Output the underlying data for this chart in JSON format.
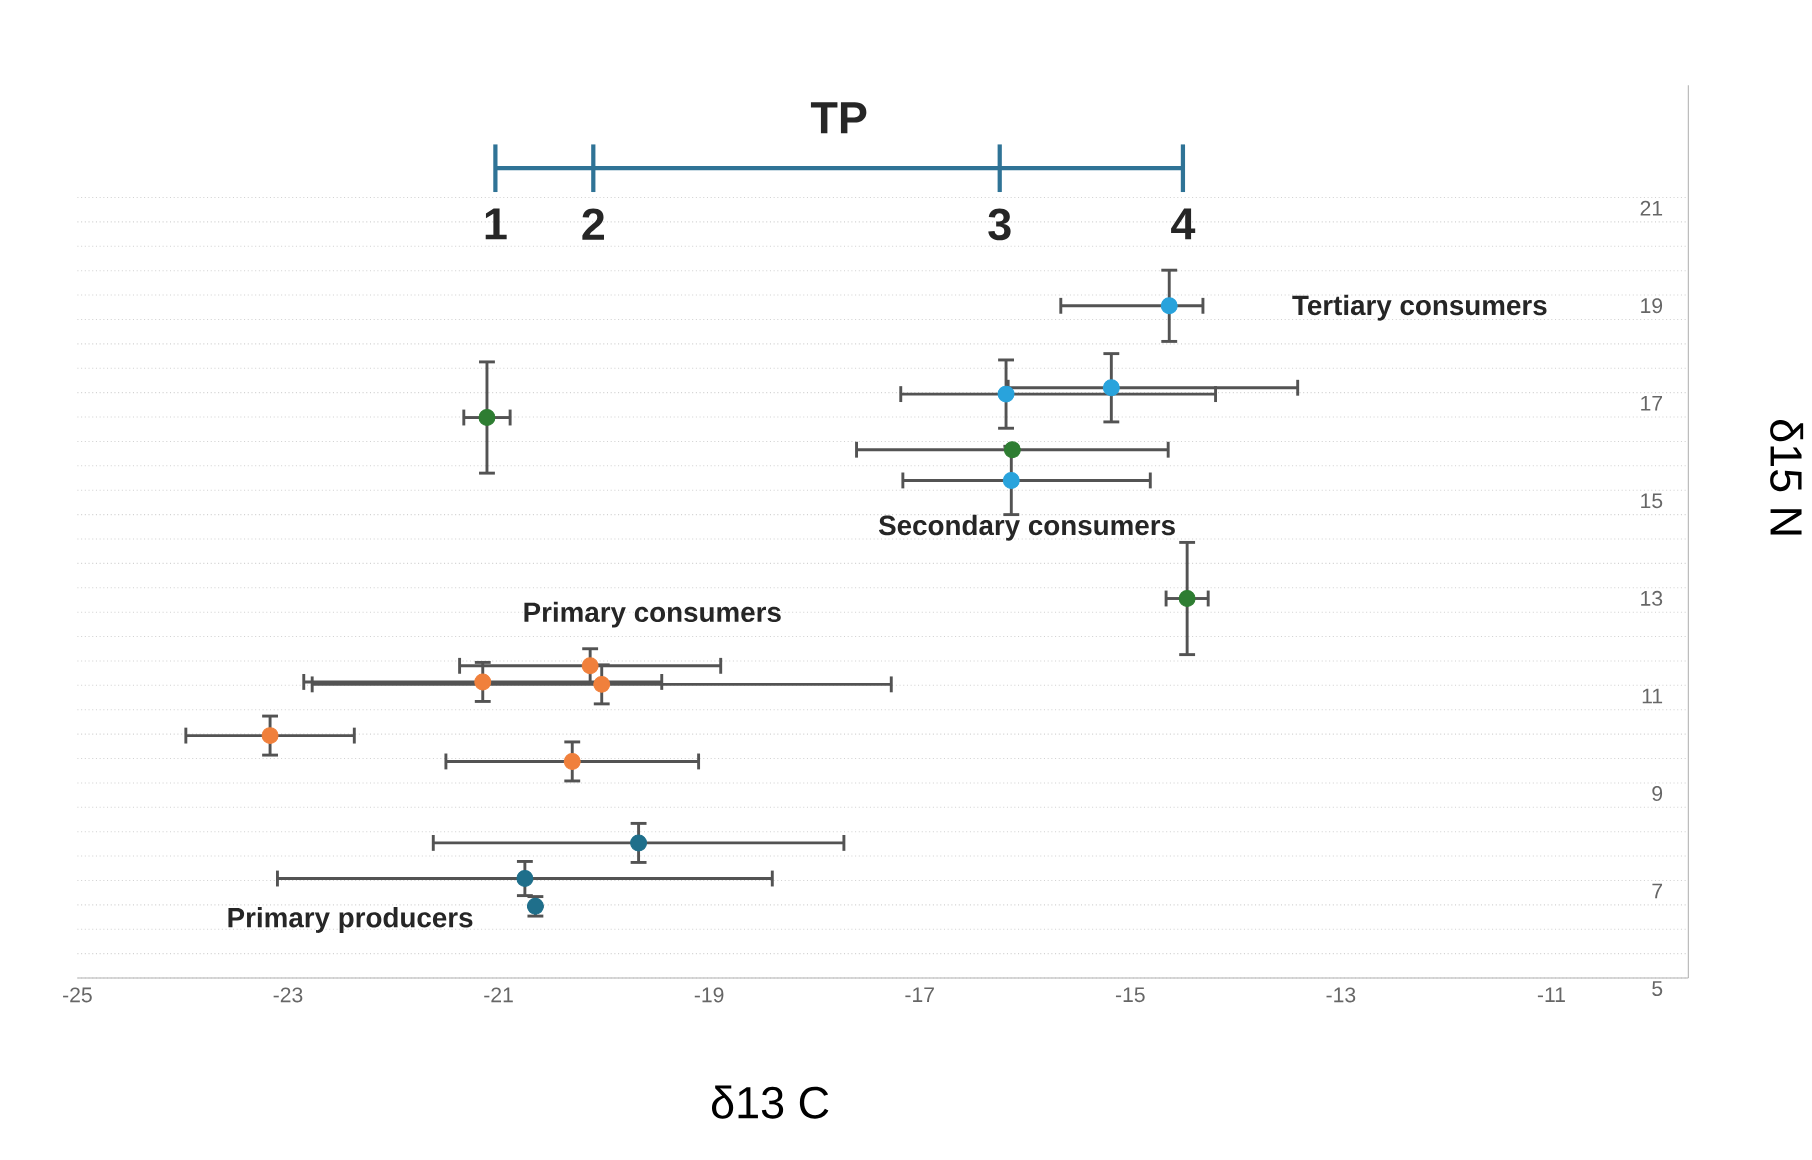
{
  "chart_data": {
    "type": "scatter",
    "xlabel": "δ13 C",
    "ylabel": "δ15 N",
    "xlim": [
      -25,
      -9.7
    ],
    "ylim": [
      5,
      23.3
    ],
    "xticks": [
      -25,
      -23,
      -21,
      -19,
      -17,
      -15,
      -13,
      -11
    ],
    "yticks": [
      5,
      7,
      9,
      11,
      13,
      15,
      17,
      19,
      21
    ],
    "grid": "y",
    "series": [
      {
        "color": "#1f6f8b",
        "x": [
          -19.67,
          -20.75,
          -20.65
        ],
        "values": [
          7.77,
          7.04,
          6.47
        ],
        "xerrors": [
          1.95,
          2.35,
          null
        ],
        "errors": [
          0.4,
          0.35,
          0.2
        ],
        "marker": "circle"
      },
      {
        "color": "#f0803c",
        "x": [
          -20.13,
          -21.15,
          -20.02,
          -23.17,
          -20.3
        ],
        "values": [
          11.4,
          11.07,
          11.02,
          9.97,
          9.44
        ],
        "xerrors": [
          1.24,
          1.7,
          2.75,
          0.8,
          1.2
        ],
        "errors": [
          0.35,
          0.4,
          0.4,
          0.4,
          0.4
        ],
        "marker": "circle"
      },
      {
        "color": "#2e7d32",
        "x": [
          -14.46,
          -21.11,
          -16.12
        ],
        "values": [
          12.78,
          16.49,
          15.83
        ],
        "xerrors": [
          0.2,
          0.22,
          1.48
        ],
        "errors": [
          1.15,
          1.14,
          null
        ],
        "marker": "circle"
      },
      {
        "color": "#29a3dc",
        "x": [
          -14.63,
          -15.18,
          -16.18,
          -16.13
        ],
        "values": [
          18.78,
          17.1,
          16.97,
          15.2
        ],
        "xerrors": [
          [
            -15.66,
            -14.31
          ],
          [
            -16.16,
            -13.41
          ],
          [
            -17.18,
            -14.19
          ],
          [
            -17.16,
            -14.81
          ]
        ],
        "errors": [
          0.73,
          0.7,
          0.7,
          0.7
        ],
        "marker": "circle"
      },
      {
        "name": "TP",
        "type": "line",
        "color": "#2f7396",
        "x": [
          -21.03,
          -20.1,
          -16.24,
          -14.5
        ],
        "values": [
          21.6,
          21.6,
          21.6,
          21.6
        ],
        "marker": "none"
      }
    ],
    "annotations": [
      "1",
      "2",
      "3",
      "4",
      "Tertiary consumers",
      "Secondary consumers",
      "Primary consumers",
      "Primary producers"
    ]
  }
}
